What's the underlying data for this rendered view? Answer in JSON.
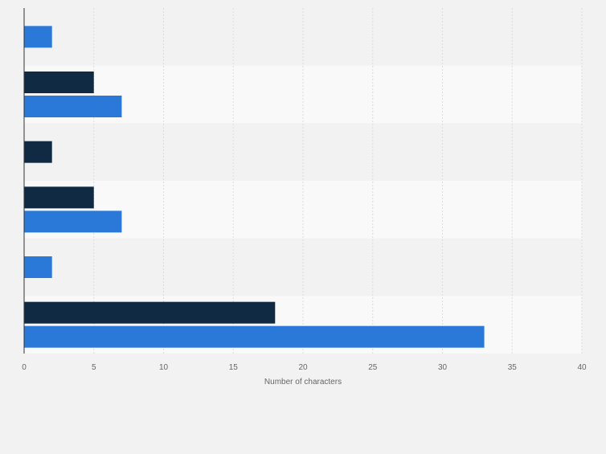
{
  "chart_data": {
    "type": "bar",
    "orientation": "horizontal",
    "title": "",
    "xlabel": "Number of characters",
    "ylabel": "",
    "xlim": [
      0,
      40
    ],
    "x_ticks": [
      "0",
      "5",
      "10",
      "15",
      "20",
      "25",
      "30",
      "35",
      "40"
    ],
    "grid": true,
    "legend": "none",
    "categories": [
      "",
      "",
      "",
      "",
      "",
      ""
    ],
    "series": [
      {
        "color": "#102a43",
        "values": [
          null,
          5,
          2,
          5,
          null,
          18
        ]
      },
      {
        "color": "#2a78d8",
        "values": [
          2,
          7,
          null,
          7,
          2,
          33
        ]
      }
    ]
  }
}
